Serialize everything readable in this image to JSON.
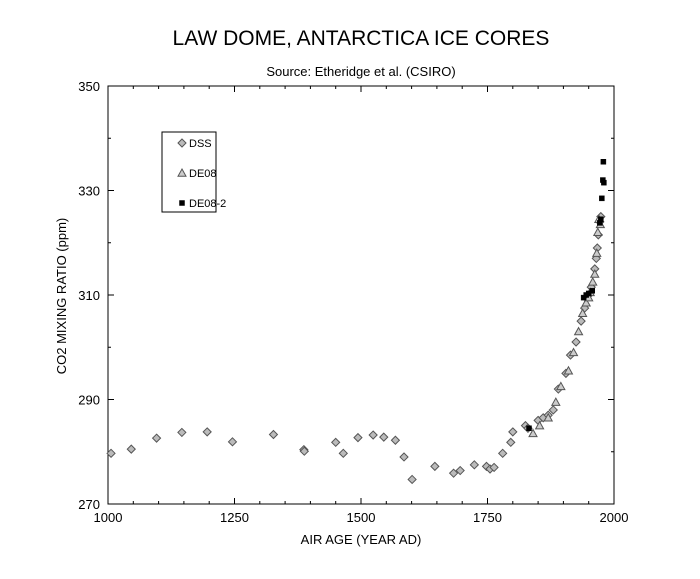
{
  "chart_data": {
    "type": "scatter",
    "title": "LAW DOME, ANTARCTICA ICE CORES",
    "subtitle": "Source:  Etheridge et al. (CSIRO)",
    "xlabel": "AIR AGE  (YEAR AD)",
    "ylabel": "CO2 MIXING RATIO  (ppm)",
    "xlim": [
      1000,
      2000
    ],
    "ylim": [
      270,
      350
    ],
    "xticks": [
      1000,
      1250,
      1500,
      1750,
      2000
    ],
    "yticks": [
      270,
      290,
      310,
      330,
      350
    ],
    "grid": false,
    "legend_position": "top-left",
    "series": [
      {
        "name": "DSS",
        "marker": "diamond",
        "color": "#555555",
        "points": [
          [
            1006,
            279.7
          ],
          [
            1046,
            280.5
          ],
          [
            1096,
            282.6
          ],
          [
            1146,
            283.7
          ],
          [
            1196,
            283.8
          ],
          [
            1246,
            281.9
          ],
          [
            1327,
            283.3
          ],
          [
            1387,
            280.4
          ],
          [
            1388,
            280.1
          ],
          [
            1450,
            281.8
          ],
          [
            1465,
            279.7
          ],
          [
            1494,
            282.7
          ],
          [
            1524,
            283.2
          ],
          [
            1545,
            282.8
          ],
          [
            1568,
            282.2
          ],
          [
            1585,
            279.0
          ],
          [
            1601,
            274.7
          ],
          [
            1646,
            277.2
          ],
          [
            1683,
            275.9
          ],
          [
            1696,
            276.4
          ],
          [
            1724,
            277.5
          ],
          [
            1748,
            277.2
          ],
          [
            1755,
            276.7
          ],
          [
            1763,
            277.0
          ],
          [
            1780,
            279.7
          ],
          [
            1796,
            281.8
          ],
          [
            1800,
            283.8
          ],
          [
            1825,
            285.0
          ],
          [
            1830,
            284.5
          ],
          [
            1850,
            286.0
          ],
          [
            1860,
            286.5
          ],
          [
            1870,
            287.0
          ],
          [
            1880,
            288.0
          ],
          [
            1890,
            292.0
          ],
          [
            1905,
            295.0
          ],
          [
            1914,
            298.5
          ],
          [
            1925,
            301.0
          ],
          [
            1935,
            305.0
          ],
          [
            1942,
            307.5
          ],
          [
            1950,
            310.0
          ],
          [
            1955,
            311.5
          ],
          [
            1962,
            315.0
          ],
          [
            1965,
            317.0
          ],
          [
            1967,
            319.0
          ],
          [
            1969,
            321.5
          ],
          [
            1972,
            324.0
          ],
          [
            1974,
            325.0
          ]
        ]
      },
      {
        "name": "DE08",
        "marker": "triangle",
        "color": "#555555",
        "points": [
          [
            1840,
            283.5
          ],
          [
            1853,
            285.0
          ],
          [
            1870,
            286.5
          ],
          [
            1885,
            289.5
          ],
          [
            1895,
            292.5
          ],
          [
            1910,
            295.5
          ],
          [
            1920,
            299.0
          ],
          [
            1930,
            303.0
          ],
          [
            1938,
            306.5
          ],
          [
            1945,
            308.5
          ],
          [
            1950,
            309.5
          ],
          [
            1953,
            310.5
          ],
          [
            1958,
            312.5
          ],
          [
            1962,
            314.0
          ],
          [
            1966,
            318.0
          ],
          [
            1968,
            322.0
          ],
          [
            1970,
            324.5
          ],
          [
            1973,
            323.5
          ]
        ]
      },
      {
        "name": "DE08-2",
        "marker": "square",
        "color": "#000000",
        "points": [
          [
            1832,
            284.5
          ],
          [
            1940,
            309.5
          ],
          [
            1945,
            310.0
          ],
          [
            1950,
            310.3
          ],
          [
            1957,
            310.8
          ],
          [
            1972,
            323.8
          ],
          [
            1974,
            324.5
          ],
          [
            1976,
            328.5
          ],
          [
            1978,
            332.0
          ],
          [
            1979,
            335.5
          ],
          [
            1980,
            331.5
          ]
        ]
      }
    ]
  }
}
